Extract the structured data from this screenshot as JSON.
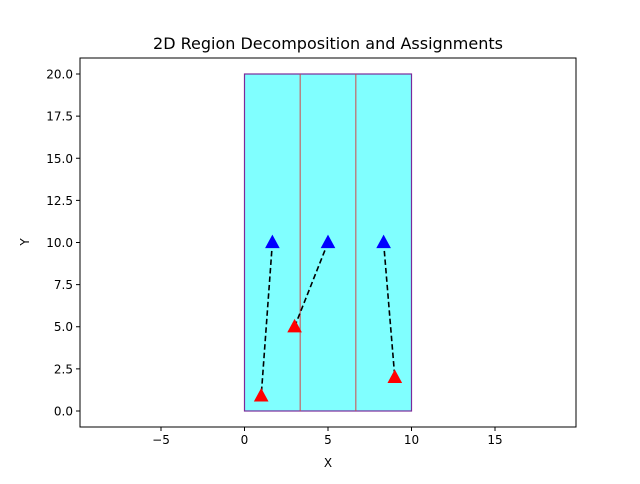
{
  "chart_data": {
    "type": "scatter",
    "title": "2D Region Decomposition and Assignments",
    "xlabel": "X",
    "ylabel": "Y",
    "xlim": [
      -9.85,
      19.85
    ],
    "ylim": [
      -0.95,
      20.95
    ],
    "xticks": [
      -5,
      0,
      5,
      10,
      15
    ],
    "xtick_labels": [
      "−5",
      "0",
      "5",
      "10",
      "15"
    ],
    "yticks": [
      0.0,
      2.5,
      5.0,
      7.5,
      10.0,
      12.5,
      15.0,
      17.5,
      20.0
    ],
    "ytick_labels": [
      "0.0",
      "2.5",
      "5.0",
      "7.5",
      "10.0",
      "12.5",
      "15.0",
      "17.5",
      "20.0"
    ],
    "grid": false,
    "region": {
      "x": [
        0,
        10
      ],
      "y": [
        0,
        20
      ],
      "fill_color": "#80ffff",
      "edge_color": "#7b2a9a"
    },
    "subregion_boundaries_x": [
      3.333,
      6.667
    ],
    "subregion_boundary_color": "#d04848",
    "blue_markers": {
      "color": "#0000ff",
      "points": [
        [
          1.67,
          10.0
        ],
        [
          5.0,
          10.0
        ],
        [
          8.33,
          10.0
        ]
      ]
    },
    "red_markers": {
      "color": "#ff0000",
      "points": [
        [
          1.0,
          0.9
        ],
        [
          3.0,
          5.0
        ],
        [
          9.0,
          2.0
        ]
      ]
    },
    "assignments": [
      {
        "from": [
          1.67,
          10.0
        ],
        "to": [
          1.0,
          0.9
        ]
      },
      {
        "from": [
          5.0,
          10.0
        ],
        "to": [
          3.0,
          5.0
        ]
      },
      {
        "from": [
          8.33,
          10.0
        ],
        "to": [
          9.0,
          2.0
        ]
      }
    ]
  }
}
